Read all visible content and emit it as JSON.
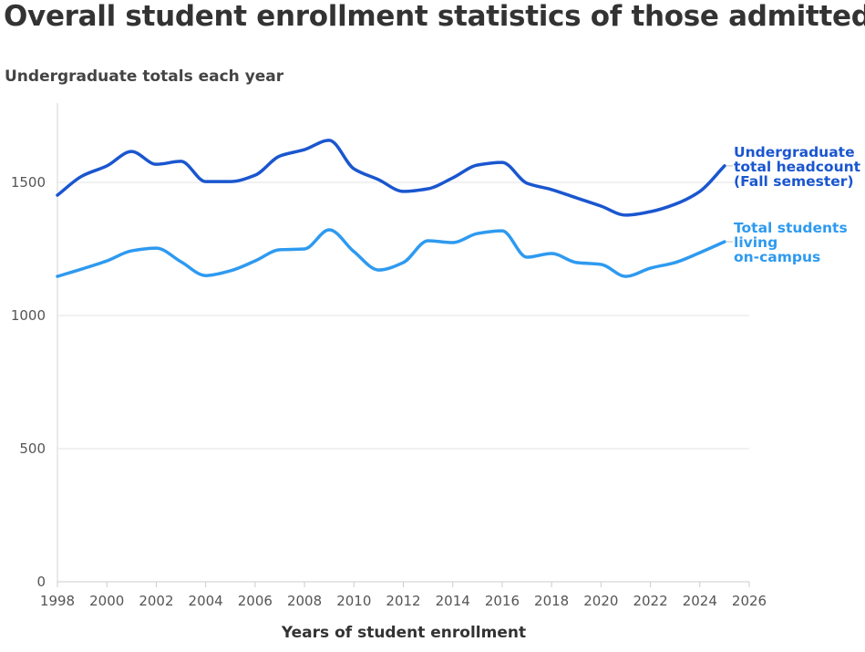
{
  "chart_data": {
    "type": "line",
    "title": "Overall student enrollment statistics of those admitted",
    "subtitle": "Undergraduate totals each year",
    "xlabel": "Years of student enrollment",
    "ylabel": "",
    "xlim": [
      1998,
      2026
    ],
    "ylim": [
      0,
      1750
    ],
    "xticks": [
      1998,
      2000,
      2002,
      2004,
      2006,
      2008,
      2010,
      2012,
      2014,
      2016,
      2018,
      2020,
      2022,
      2024,
      2026
    ],
    "yticks": [
      0,
      500,
      1000,
      1500
    ],
    "grid": "horizontal",
    "legend": "direct labels at line ends (right)",
    "x": [
      1998,
      1999,
      2000,
      2001,
      2002,
      2003,
      2004,
      2005,
      2006,
      2007,
      2008,
      2009,
      2010,
      2011,
      2012,
      2013,
      2014,
      2015,
      2016,
      2017,
      2018,
      2019,
      2020,
      2021,
      2022,
      2023,
      2024,
      2025
    ],
    "series": [
      {
        "name": "Undergraduate total headcount (Fall semester)",
        "label_lines": [
          "Undergraduate",
          "total headcount",
          "(Fall semester)"
        ],
        "color": "#1a56cf",
        "values": [
          1452,
          1524,
          1562,
          1616,
          1568,
          1579,
          1503,
          1503,
          1527,
          1599,
          1623,
          1658,
          1551,
          1510,
          1466,
          1476,
          1517,
          1565,
          1575,
          1497,
          1473,
          1442,
          1411,
          1377,
          1390,
          1418,
          1466,
          1562
        ]
      },
      {
        "name": "Total students living on-campus",
        "label_lines": [
          "Total students",
          "living",
          "on-campus"
        ],
        "color": "#2e9af0",
        "values": [
          1147,
          1175,
          1205,
          1243,
          1253,
          1202,
          1150,
          1168,
          1205,
          1247,
          1250,
          1322,
          1240,
          1171,
          1199,
          1281,
          1274,
          1308,
          1318,
          1219,
          1233,
          1199,
          1192,
          1147,
          1178,
          1199,
          1236,
          1277
        ]
      }
    ]
  }
}
